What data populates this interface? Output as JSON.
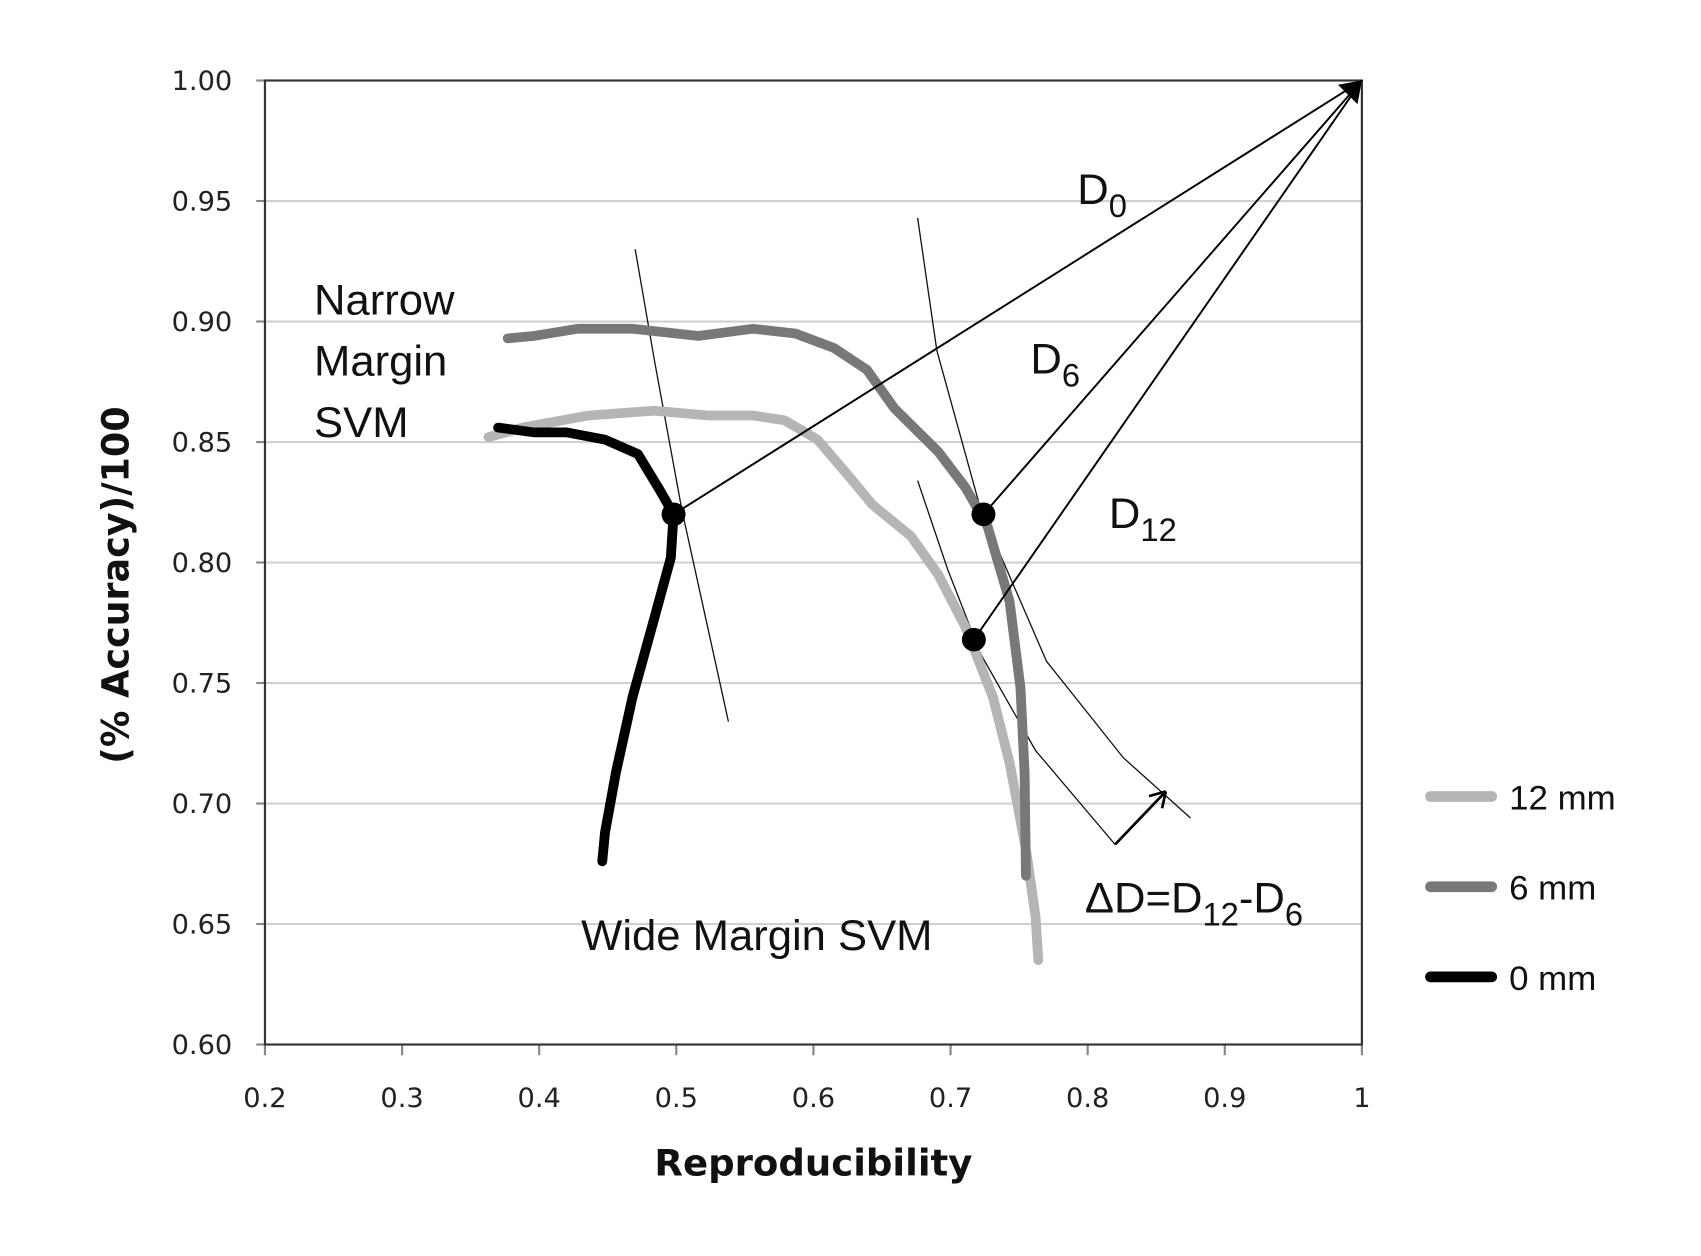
{
  "chart_data": {
    "type": "line",
    "title": "",
    "xlabel": "Reproducibility",
    "ylabel": "(% Accuracy)/100",
    "xlim": [
      0.2,
      1.0
    ],
    "ylim": [
      0.6,
      1.0
    ],
    "x_ticks": [
      "0.2",
      "0.3",
      "0.4",
      "0.5",
      "0.6",
      "0.7",
      "0.8",
      "0.9",
      "1"
    ],
    "y_ticks": [
      "0.60",
      "0.65",
      "0.70",
      "0.75",
      "0.80",
      "0.85",
      "0.90",
      "0.95",
      "1.00"
    ],
    "grid": "horizontal",
    "legend_position": "right",
    "series": [
      {
        "name": "12 mm",
        "color": "#b5b5b5",
        "points": [
          [
            0.363,
            0.852
          ],
          [
            0.388,
            0.856
          ],
          [
            0.436,
            0.861
          ],
          [
            0.484,
            0.863
          ],
          [
            0.524,
            0.861
          ],
          [
            0.556,
            0.861
          ],
          [
            0.579,
            0.859
          ],
          [
            0.603,
            0.851
          ],
          [
            0.627,
            0.835
          ],
          [
            0.643,
            0.824
          ],
          [
            0.671,
            0.811
          ],
          [
            0.691,
            0.795
          ],
          [
            0.711,
            0.773
          ],
          [
            0.731,
            0.744
          ],
          [
            0.743,
            0.717
          ],
          [
            0.755,
            0.681
          ],
          [
            0.762,
            0.653
          ],
          [
            0.764,
            0.635
          ]
        ]
      },
      {
        "name": "6 mm",
        "color": "#787878",
        "points": [
          [
            0.377,
            0.893
          ],
          [
            0.396,
            0.894
          ],
          [
            0.428,
            0.897
          ],
          [
            0.468,
            0.897
          ],
          [
            0.516,
            0.894
          ],
          [
            0.556,
            0.897
          ],
          [
            0.587,
            0.895
          ],
          [
            0.615,
            0.889
          ],
          [
            0.639,
            0.88
          ],
          [
            0.659,
            0.864
          ],
          [
            0.691,
            0.846
          ],
          [
            0.711,
            0.831
          ],
          [
            0.727,
            0.815
          ],
          [
            0.743,
            0.784
          ],
          [
            0.751,
            0.748
          ],
          [
            0.754,
            0.713
          ],
          [
            0.755,
            0.67
          ]
        ]
      },
      {
        "name": "0 mm",
        "color": "#000000",
        "points": [
          [
            0.37,
            0.856
          ],
          [
            0.396,
            0.854
          ],
          [
            0.42,
            0.854
          ],
          [
            0.448,
            0.851
          ],
          [
            0.472,
            0.845
          ],
          [
            0.488,
            0.83
          ],
          [
            0.498,
            0.82
          ],
          [
            0.496,
            0.802
          ],
          [
            0.484,
            0.777
          ],
          [
            0.468,
            0.744
          ],
          [
            0.456,
            0.713
          ],
          [
            0.448,
            0.688
          ],
          [
            0.446,
            0.676
          ]
        ]
      }
    ],
    "highlight_points": [
      {
        "label": "D0 point",
        "x": 0.498,
        "y": 0.82
      },
      {
        "label": "D6 point",
        "x": 0.724,
        "y": 0.82
      },
      {
        "label": "D12 point",
        "x": 0.717,
        "y": 0.768
      }
    ],
    "target_point": {
      "x": 1.0,
      "y": 1.0
    },
    "iso_arcs": [
      [
        [
          0.47,
          0.93
        ],
        [
          0.484,
          0.884
        ],
        [
          0.504,
          0.822
        ],
        [
          0.538,
          0.734
        ]
      ],
      [
        [
          0.676,
          0.943
        ],
        [
          0.69,
          0.888
        ],
        [
          0.722,
          0.822
        ],
        [
          0.77,
          0.759
        ],
        [
          0.826,
          0.719
        ],
        [
          0.875,
          0.694
        ]
      ],
      [
        [
          0.676,
          0.834
        ],
        [
          0.698,
          0.797
        ],
        [
          0.722,
          0.762
        ],
        [
          0.762,
          0.722
        ],
        [
          0.82,
          0.683
        ]
      ]
    ],
    "delta_arrow": {
      "from": [
        0.82,
        0.683
      ],
      "to": [
        0.857,
        0.705
      ]
    },
    "annotations": {
      "narrow_1": "Narrow",
      "narrow_2": "Margin",
      "narrow_3": "SVM",
      "wide": "Wide Margin SVM",
      "d0_main": "D",
      "d0_sub": "0",
      "d6_main": "D",
      "d6_sub": "6",
      "d12_main": "D",
      "d12_sub": "12",
      "delta_a": "ΔD=D",
      "delta_sub1": "12",
      "delta_b": "-D",
      "delta_sub2": "6"
    }
  }
}
